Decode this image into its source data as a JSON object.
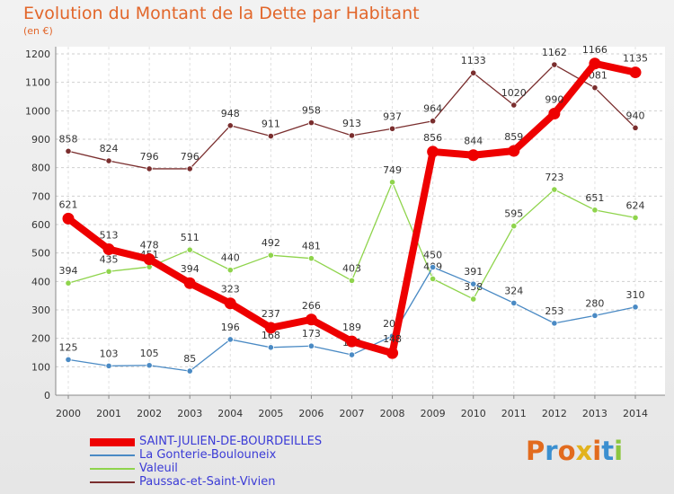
{
  "header": {
    "title": "Evolution du Montant de la Dette par Habitant",
    "unit": "(en €)"
  },
  "logo": {
    "text": "Proxiti",
    "colors": [
      "#e26b1e",
      "#3a8fd0",
      "#e26b1e",
      "#e2b31e",
      "#e26b1e",
      "#3a8fd0",
      "#8cc63f"
    ]
  },
  "chart_data": {
    "type": "line",
    "x": [
      "2000",
      "2001",
      "2002",
      "2003",
      "2004",
      "2005",
      "2006",
      "2007",
      "2008",
      "2009",
      "2010",
      "2011",
      "2012",
      "2013",
      "2014"
    ],
    "ylim": [
      0,
      1200
    ],
    "yticks": [
      0,
      100,
      200,
      300,
      400,
      500,
      600,
      700,
      800,
      900,
      1000,
      1100,
      1200
    ],
    "grid": true,
    "legend_position": "bottom-left",
    "series": [
      {
        "name": "Paussac-et-Saint-Vivien",
        "color": "#7a2e2e",
        "values": [
          858,
          824,
          796,
          796,
          948,
          911,
          958,
          913,
          937,
          964,
          1133,
          1020,
          1162,
          1081,
          940
        ],
        "labels": [
          "858",
          "824",
          "796",
          "796",
          "948",
          "911",
          "958",
          "913",
          "937",
          "964",
          "1133",
          "1020",
          "1162",
          "1081",
          "940"
        ]
      },
      {
        "name": "Valeuil",
        "color": "#8fd44c",
        "values": [
          394,
          435,
          451,
          511,
          440,
          492,
          481,
          403,
          749,
          409,
          338,
          595,
          723,
          651,
          624
        ],
        "labels": [
          "394",
          "435",
          "451",
          "511",
          "440",
          "492",
          "481",
          "403",
          "749",
          "409",
          "338",
          "595",
          "723",
          "651",
          "624"
        ]
      },
      {
        "name": "La Gonterie-Boulouneix",
        "color": "#4a8ac4",
        "values": [
          125,
          103,
          105,
          85,
          196,
          168,
          173,
          142,
          208,
          450,
          391,
          324,
          253,
          280,
          310
        ],
        "labels": [
          "125",
          "103",
          "105",
          "85",
          "196",
          "168",
          "173",
          "142",
          "208",
          "450",
          "391",
          "324",
          "253",
          "280",
          "310"
        ]
      },
      {
        "name": "SAINT-JULIEN-DE-BOURDEILLES",
        "color": "#ee0000",
        "values": [
          621,
          513,
          478,
          394,
          323,
          237,
          266,
          189,
          148,
          856,
          844,
          859,
          990,
          1166,
          1135
        ],
        "labels": [
          "621",
          "513",
          "478",
          "394",
          "323",
          "237",
          "266",
          "189",
          "148",
          "856",
          "844",
          "859",
          "990",
          "1166",
          "1135"
        ]
      }
    ]
  },
  "legend": [
    {
      "label": "SAINT-JULIEN-DE-BOURDEILLES",
      "color": "#ee0000",
      "thick": true
    },
    {
      "label": "La Gonterie-Boulouneix",
      "color": "#4a8ac4",
      "thick": false
    },
    {
      "label": "Valeuil",
      "color": "#8fd44c",
      "thick": false
    },
    {
      "label": "Paussac-et-Saint-Vivien",
      "color": "#7a2e2e",
      "thick": false
    }
  ]
}
